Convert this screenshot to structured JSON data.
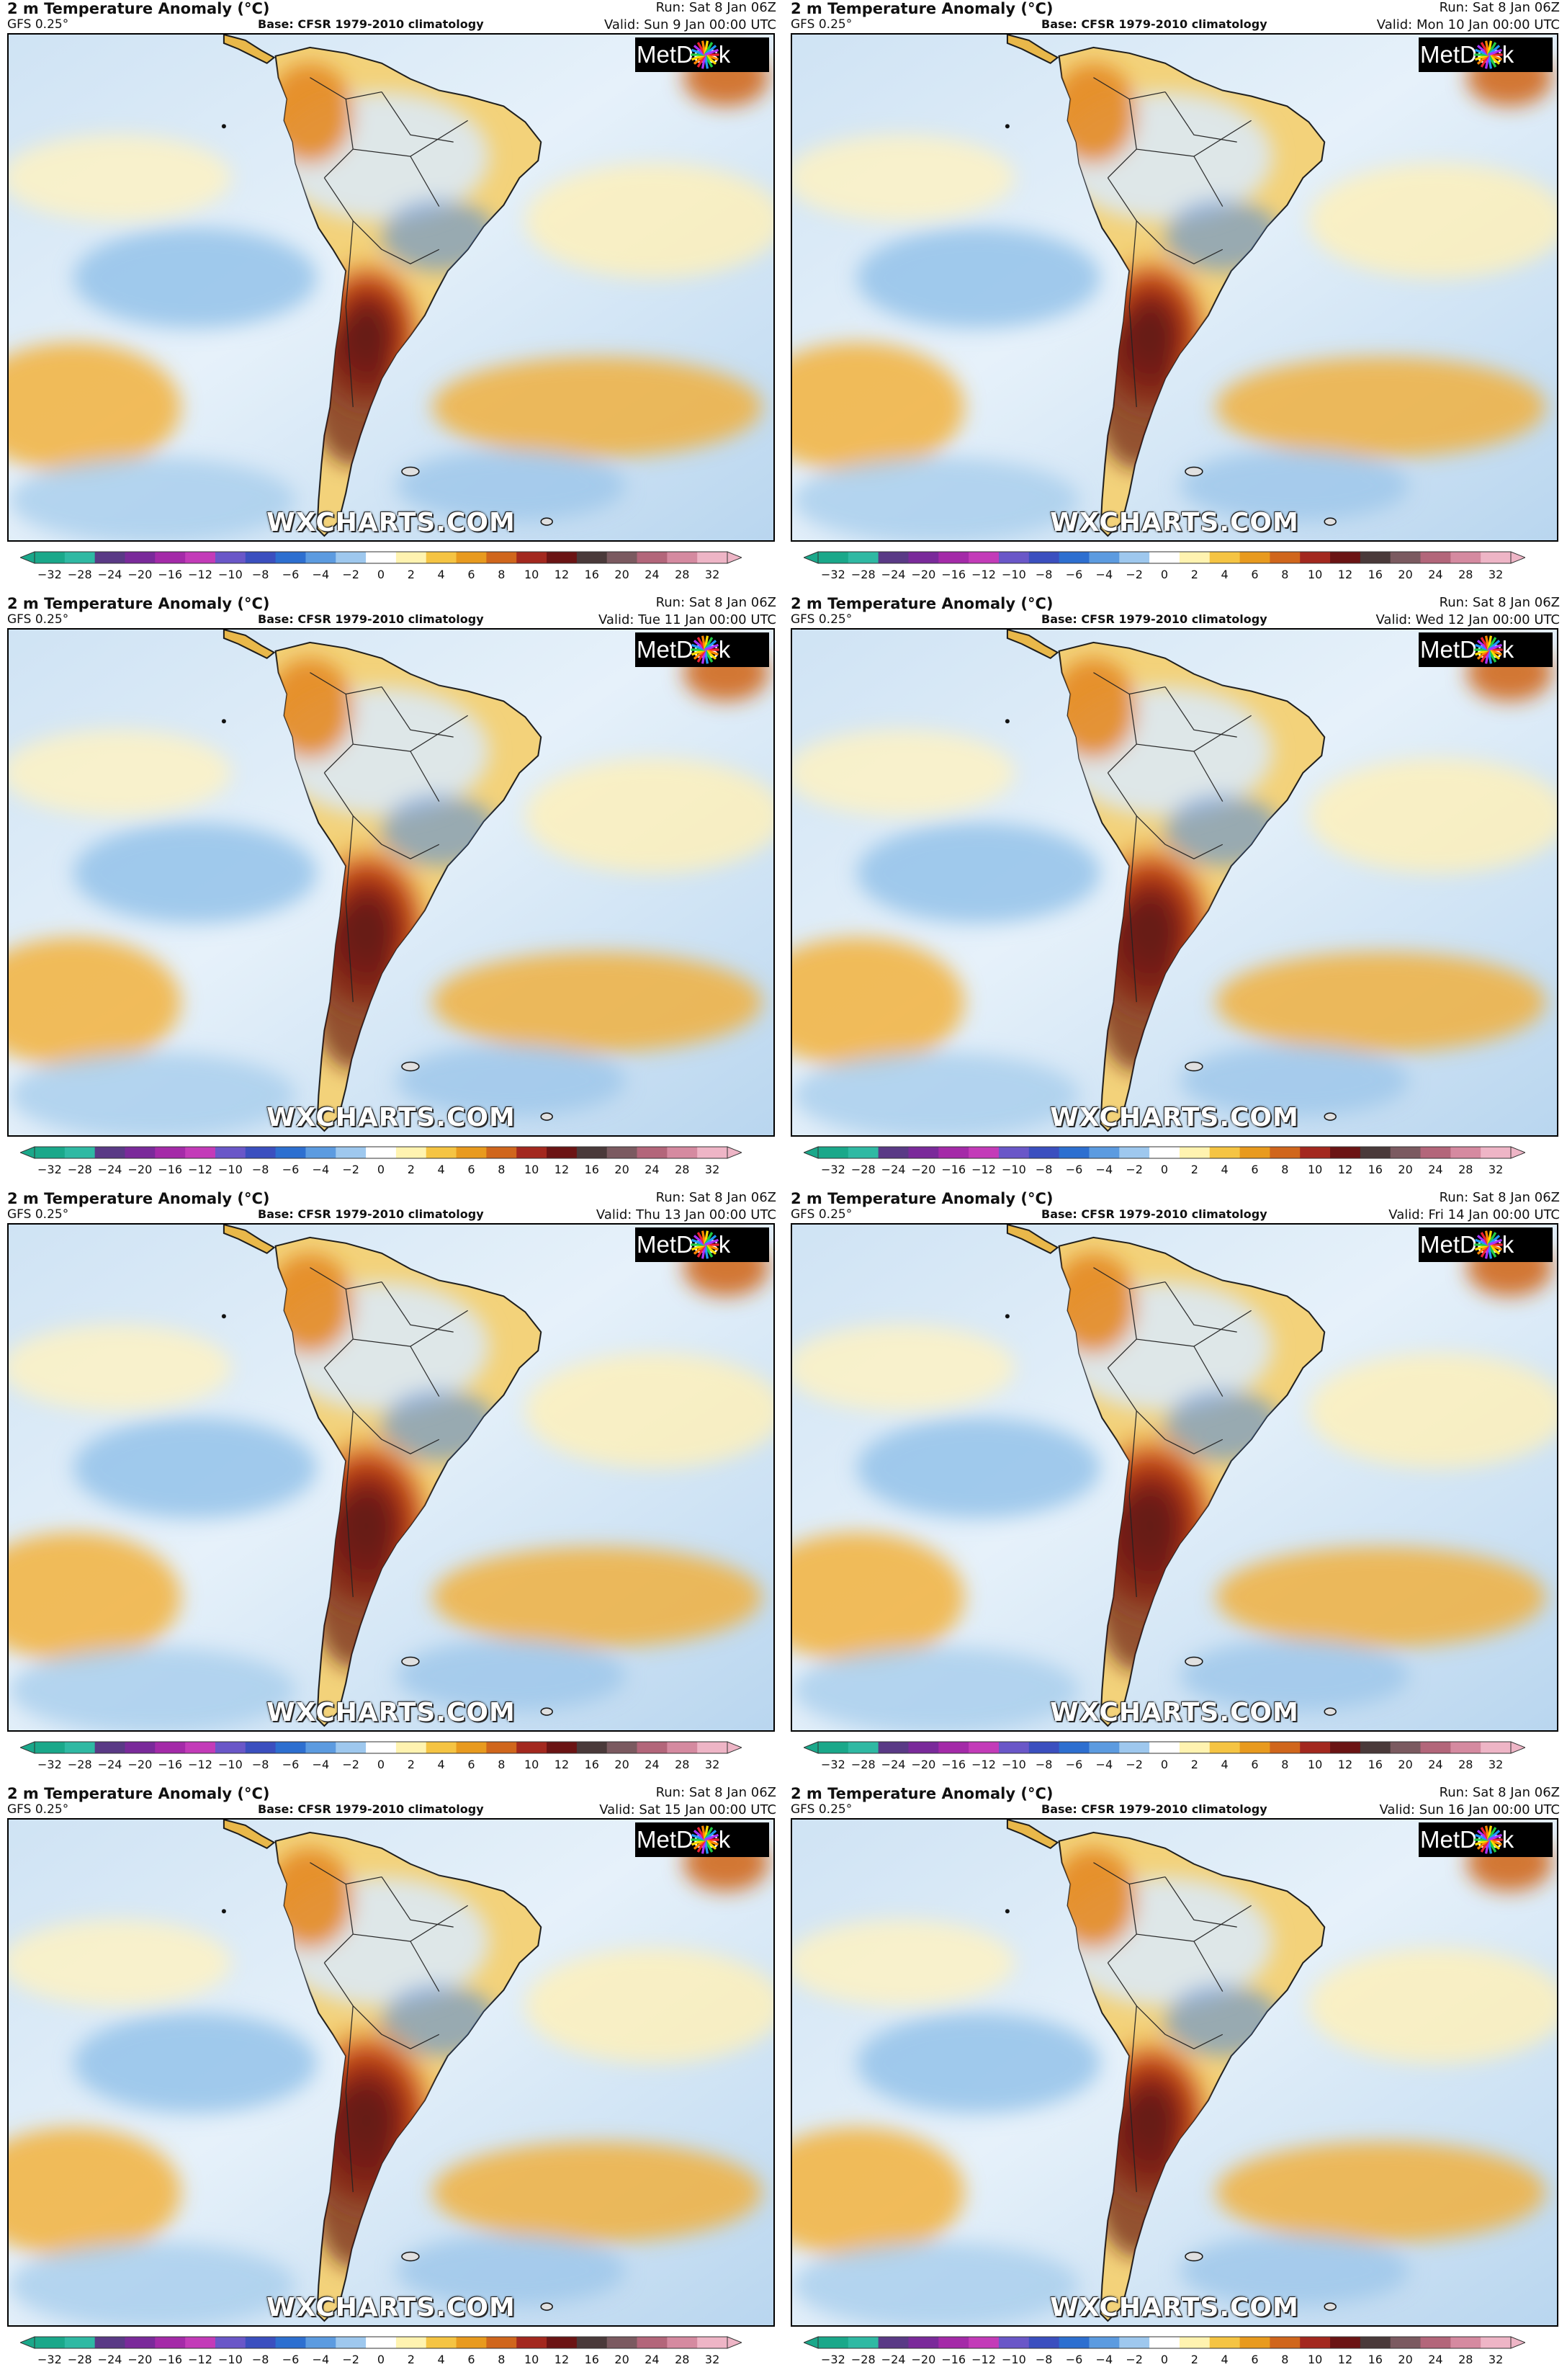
{
  "panels": [
    {
      "title": "2 m Temperature Anomaly (°C)",
      "model": "GFS 0.25°",
      "base": "Base: CFSR 1979-2010 climatology",
      "run": "Run: Sat 8 Jan 06Z",
      "valid": "Valid: Sun 9 Jan 00:00 UTC",
      "logo": "MetDesk",
      "watermark": "WXCHARTS.COM",
      "heat_level": 0.78
    },
    {
      "title": "2 m Temperature Anomaly (°C)",
      "model": "GFS 0.25°",
      "base": "Base: CFSR 1979-2010 climatology",
      "run": "Run: Sat 8 Jan 06Z",
      "valid": "Valid: Mon 10 Jan 00:00 UTC",
      "logo": "MetDesk",
      "watermark": "WXCHARTS.COM",
      "heat_level": 0.82
    },
    {
      "title": "2 m Temperature Anomaly (°C)",
      "model": "GFS 0.25°",
      "base": "Base: CFSR 1979-2010 climatology",
      "run": "Run: Sat 8 Jan 06Z",
      "valid": "Valid: Tue 11 Jan 00:00 UTC",
      "logo": "MetDesk",
      "watermark": "WXCHARTS.COM",
      "heat_level": 0.88
    },
    {
      "title": "2 m Temperature Anomaly (°C)",
      "model": "GFS 0.25°",
      "base": "Base: CFSR 1979-2010 climatology",
      "run": "Run: Sat 8 Jan 06Z",
      "valid": "Valid: Wed 12 Jan 00:00 UTC",
      "logo": "MetDesk",
      "watermark": "WXCHARTS.COM",
      "heat_level": 0.9
    },
    {
      "title": "2 m Temperature Anomaly (°C)",
      "model": "GFS 0.25°",
      "base": "Base: CFSR 1979-2010 climatology",
      "run": "Run: Sat 8 Jan 06Z",
      "valid": "Valid: Thu 13 Jan 00:00 UTC",
      "logo": "MetDesk",
      "watermark": "WXCHARTS.COM",
      "heat_level": 0.92
    },
    {
      "title": "2 m Temperature Anomaly (°C)",
      "model": "GFS 0.25°",
      "base": "Base: CFSR 1979-2010 climatology",
      "run": "Run: Sat 8 Jan 06Z",
      "valid": "Valid: Fri 14 Jan 00:00 UTC",
      "logo": "MetDesk",
      "watermark": "WXCHARTS.COM",
      "heat_level": 0.95
    },
    {
      "title": "2 m Temperature Anomaly (°C)",
      "model": "GFS 0.25°",
      "base": "Base: CFSR 1979-2010 climatology",
      "run": "Run: Sat 8 Jan 06Z",
      "valid": "Valid: Sat 15 Jan 00:00 UTC",
      "logo": "MetDesk",
      "watermark": "WXCHARTS.COM",
      "heat_level": 0.97
    },
    {
      "title": "2 m Temperature Anomaly (°C)",
      "model": "GFS 0.25°",
      "base": "Base: CFSR 1979-2010 climatology",
      "run": "Run: Sat 8 Jan 06Z",
      "valid": "Valid: Sun 16 Jan 00:00 UTC",
      "logo": "MetDesk",
      "watermark": "WXCHARTS.COM",
      "heat_level": 0.85
    }
  ],
  "colorbar": {
    "ticks": [
      "−32",
      "−28",
      "−24",
      "−20",
      "−16",
      "−12",
      "−10",
      "−8",
      "−6",
      "−4",
      "−2",
      "0",
      "2",
      "4",
      "6",
      "8",
      "10",
      "12",
      "16",
      "20",
      "24",
      "28",
      "32"
    ],
    "colors": [
      "#1aa88a",
      "#2fb9a3",
      "#5a3a86",
      "#7a2a9a",
      "#a42aa8",
      "#c33bb8",
      "#6a57c8",
      "#3b4fbf",
      "#2d6fd0",
      "#5c9be0",
      "#9ec8ee",
      "#ffffff",
      "#fff3b0",
      "#f5c443",
      "#e89a1e",
      "#d0661c",
      "#a3281e",
      "#6b1414",
      "#4a3a3a",
      "#7b5a60",
      "#b3667a",
      "#d58aa0",
      "#eeb5c6"
    ]
  }
}
